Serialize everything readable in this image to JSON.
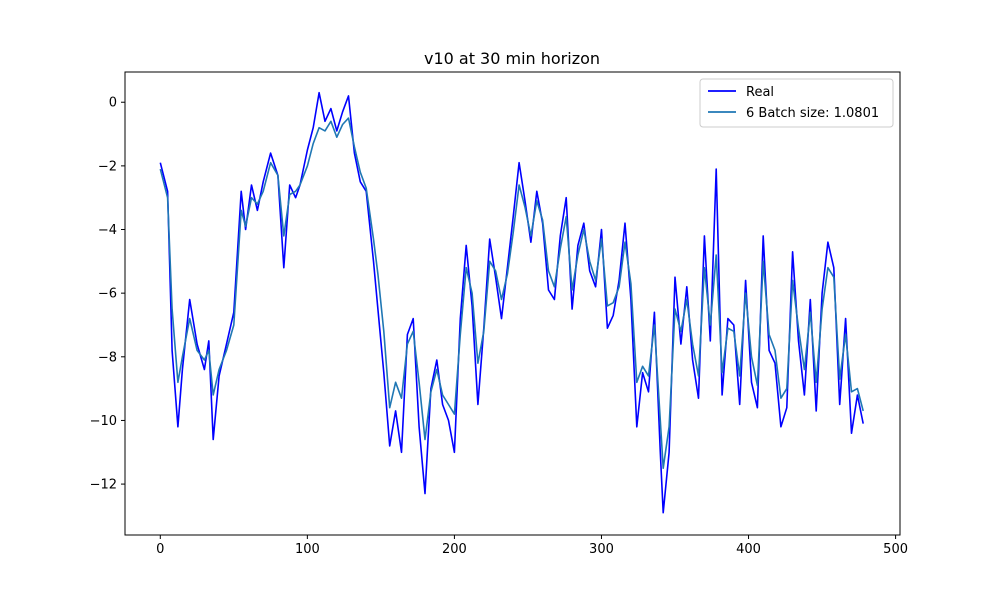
{
  "chart_data": {
    "type": "line",
    "title": "v10 at 30 min horizon",
    "xlabel": "",
    "ylabel": "",
    "xlim": [
      -24,
      503
    ],
    "ylim": [
      -13.6,
      0.95
    ],
    "xticks": [
      0,
      100,
      200,
      300,
      400,
      500
    ],
    "yticks": [
      0,
      -2,
      -4,
      -6,
      -8,
      -10,
      -12
    ],
    "legend_position": "top-right",
    "grid": false,
    "series": [
      {
        "name": "Real",
        "color": "#0000ff",
        "x": [
          0,
          5,
          8,
          12,
          15,
          20,
          25,
          30,
          33,
          36,
          40,
          45,
          50,
          55,
          58,
          62,
          66,
          70,
          75,
          80,
          84,
          88,
          92,
          95,
          100,
          104,
          108,
          112,
          116,
          120,
          124,
          128,
          132,
          136,
          140,
          145,
          148,
          152,
          156,
          160,
          164,
          168,
          172,
          176,
          180,
          184,
          188,
          192,
          196,
          200,
          204,
          208,
          212,
          216,
          220,
          224,
          228,
          232,
          236,
          240,
          244,
          248,
          252,
          256,
          260,
          264,
          268,
          272,
          276,
          280,
          284,
          288,
          292,
          296,
          300,
          304,
          308,
          312,
          316,
          320,
          324,
          328,
          332,
          336,
          340,
          342,
          346,
          350,
          354,
          358,
          362,
          366,
          370,
          374,
          378,
          382,
          386,
          390,
          394,
          398,
          402,
          406,
          410,
          414,
          418,
          422,
          426,
          430,
          434,
          438,
          442,
          446,
          450,
          454,
          458,
          462,
          466,
          470,
          474,
          478
        ],
        "y": [
          -1.9,
          -2.8,
          -7.8,
          -10.2,
          -8.4,
          -6.2,
          -7.6,
          -8.4,
          -7.5,
          -10.6,
          -8.6,
          -7.6,
          -6.6,
          -2.8,
          -4.0,
          -2.6,
          -3.4,
          -2.5,
          -1.6,
          -2.3,
          -5.2,
          -2.6,
          -3.0,
          -2.6,
          -1.5,
          -0.8,
          0.3,
          -0.6,
          -0.2,
          -0.9,
          -0.3,
          0.2,
          -1.6,
          -2.5,
          -2.8,
          -5.0,
          -6.5,
          -8.5,
          -10.8,
          -9.7,
          -11.0,
          -7.3,
          -6.8,
          -10.2,
          -12.3,
          -9.0,
          -8.1,
          -9.5,
          -10.0,
          -11.0,
          -6.8,
          -4.5,
          -6.4,
          -9.5,
          -7.1,
          -4.3,
          -5.5,
          -6.8,
          -5.2,
          -3.6,
          -1.9,
          -3.1,
          -4.4,
          -2.8,
          -3.8,
          -5.9,
          -6.2,
          -4.2,
          -3.0,
          -6.5,
          -4.5,
          -3.8,
          -5.3,
          -5.8,
          -4.0,
          -7.1,
          -6.7,
          -5.6,
          -3.8,
          -6.2,
          -10.2,
          -8.5,
          -9.1,
          -6.6,
          -11.0,
          -12.9,
          -11.0,
          -5.5,
          -7.6,
          -5.8,
          -8.1,
          -9.3,
          -4.2,
          -7.5,
          -2.1,
          -9.2,
          -6.8,
          -7.0,
          -9.5,
          -5.6,
          -8.8,
          -9.6,
          -4.2,
          -7.8,
          -8.2,
          -10.2,
          -9.6,
          -4.7,
          -7.5,
          -9.2,
          -6.2,
          -9.7,
          -6.0,
          -4.4,
          -5.2,
          -9.5,
          -6.8,
          -10.4,
          -9.2,
          -10.1
        ]
      },
      {
        "name": "6 Batch size: 1.0801",
        "color": "#1f77b4",
        "x": [
          0,
          5,
          8,
          12,
          15,
          20,
          25,
          30,
          33,
          36,
          40,
          45,
          50,
          55,
          58,
          62,
          66,
          70,
          75,
          80,
          84,
          88,
          92,
          95,
          100,
          104,
          108,
          112,
          116,
          120,
          124,
          128,
          132,
          136,
          140,
          145,
          148,
          152,
          156,
          160,
          164,
          168,
          172,
          176,
          180,
          184,
          188,
          192,
          196,
          200,
          204,
          208,
          212,
          216,
          220,
          224,
          228,
          232,
          236,
          240,
          244,
          248,
          252,
          256,
          260,
          264,
          268,
          272,
          276,
          280,
          284,
          288,
          292,
          296,
          300,
          304,
          308,
          312,
          316,
          320,
          324,
          328,
          332,
          336,
          340,
          342,
          346,
          350,
          354,
          358,
          362,
          366,
          370,
          374,
          378,
          382,
          386,
          390,
          394,
          398,
          402,
          406,
          410,
          414,
          418,
          422,
          426,
          430,
          434,
          438,
          442,
          446,
          450,
          454,
          458,
          462,
          466,
          470,
          474,
          478
        ],
        "y": [
          -2.1,
          -3.0,
          -6.5,
          -8.8,
          -8.0,
          -6.8,
          -7.8,
          -8.1,
          -7.8,
          -9.2,
          -8.4,
          -7.8,
          -7.0,
          -3.4,
          -3.9,
          -3.0,
          -3.2,
          -2.8,
          -1.9,
          -2.3,
          -4.2,
          -2.9,
          -2.8,
          -2.6,
          -2.0,
          -1.3,
          -0.8,
          -0.9,
          -0.6,
          -1.1,
          -0.7,
          -0.5,
          -1.4,
          -2.2,
          -2.7,
          -4.3,
          -5.4,
          -7.2,
          -9.6,
          -8.8,
          -9.3,
          -7.6,
          -7.2,
          -8.8,
          -10.6,
          -9.1,
          -8.4,
          -9.2,
          -9.5,
          -9.8,
          -7.3,
          -5.2,
          -6.0,
          -8.2,
          -7.2,
          -5.0,
          -5.3,
          -6.2,
          -5.4,
          -4.1,
          -2.6,
          -3.3,
          -4.2,
          -3.1,
          -3.7,
          -5.3,
          -5.8,
          -4.6,
          -3.6,
          -5.9,
          -4.8,
          -4.0,
          -5.0,
          -5.6,
          -4.3,
          -6.4,
          -6.3,
          -5.8,
          -4.4,
          -5.7,
          -8.8,
          -8.3,
          -8.6,
          -7.0,
          -10.0,
          -11.5,
          -10.2,
          -6.5,
          -7.2,
          -6.2,
          -7.6,
          -8.6,
          -5.2,
          -7.0,
          -4.8,
          -8.5,
          -7.1,
          -7.2,
          -8.6,
          -6.0,
          -8.0,
          -8.9,
          -5.0,
          -7.3,
          -7.8,
          -9.3,
          -9.0,
          -5.6,
          -7.1,
          -8.4,
          -6.6,
          -8.8,
          -6.5,
          -5.2,
          -5.5,
          -8.7,
          -7.3,
          -9.1,
          -9.0,
          -9.7
        ]
      }
    ]
  }
}
